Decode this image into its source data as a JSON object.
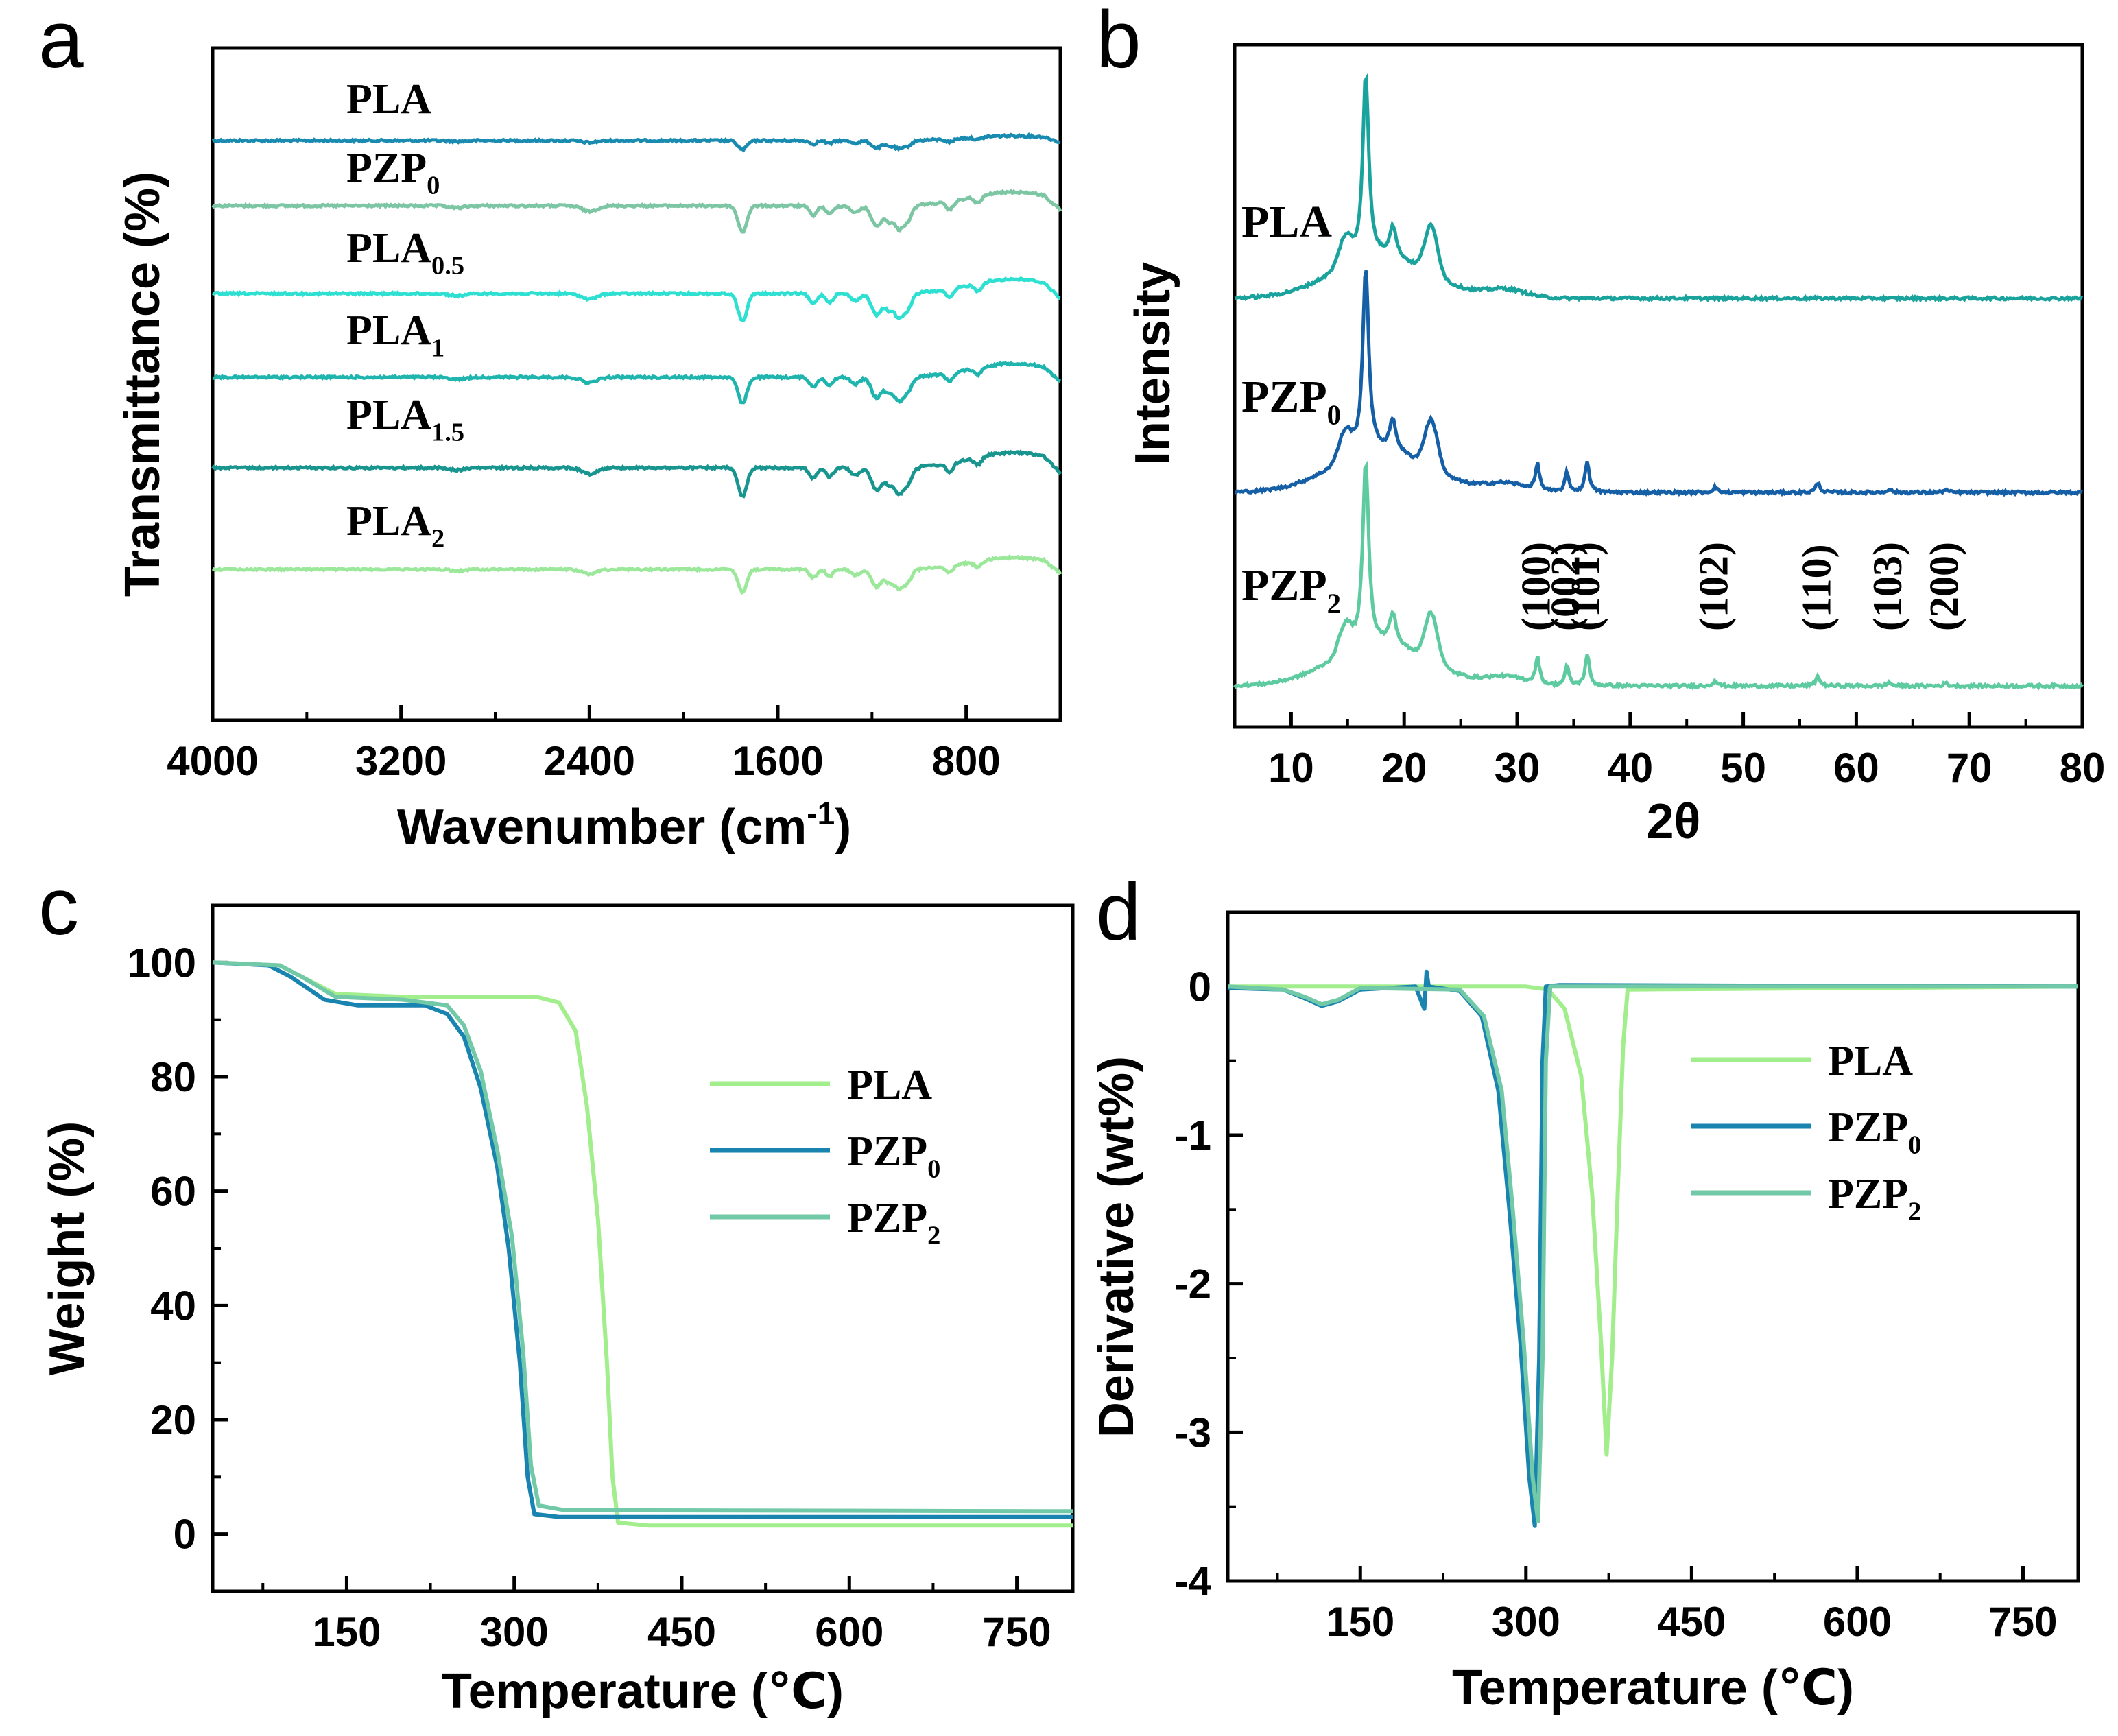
{
  "colors": {
    "PLA": "#1a8bb0",
    "PZP0": "#7cc6a4",
    "PLA0.5": "#2de0d2",
    "PLA1": "#1fb5ae",
    "PLA1.5": "#18958e",
    "PLA2": "#9be89b",
    "xrd_PLA": "#1aa39d",
    "xrd_PZP0": "#155fa6",
    "xrd_PZP2": "#5dcaa0",
    "tga_PLA": "#a2ee8c",
    "tga_PZP0": "#1a84b0",
    "tga_PZP2": "#72c9a7"
  },
  "chart_data": [
    {
      "panel": "a",
      "type": "line",
      "xlabel_main": "Wavenumber (cm",
      "xlabel_sup": "-1",
      "xlabel_close": ")",
      "ylabel": "Transmittance (%)",
      "xlim": [
        4000,
        400
      ],
      "xticks": [
        "4000",
        "3200",
        "2400",
        "1600",
        "800"
      ],
      "xtick_values": [
        4000,
        3200,
        2400,
        1600,
        800
      ],
      "series": [
        {
          "key": "PLA",
          "label_main": "PLA",
          "label_sub": "",
          "offset": 0
        },
        {
          "key": "PZP0",
          "label_main": "PZP",
          "label_sub": "0",
          "offset": 1
        },
        {
          "key": "PLA0.5",
          "label_main": "PLA",
          "label_sub": "0.5",
          "offset": 2
        },
        {
          "key": "PLA1",
          "label_main": "PLA",
          "label_sub": "1",
          "offset": 3
        },
        {
          "key": "PLA1.5",
          "label_main": "PLA",
          "label_sub": "1.5",
          "offset": 4
        },
        {
          "key": "PLA2",
          "label_main": "PLA",
          "label_sub": "2",
          "offset": 5
        }
      ],
      "bands_cm-1": [
        2400,
        1750,
        1450,
        1380,
        1180,
        1085,
        870,
        750
      ]
    },
    {
      "panel": "b",
      "type": "line",
      "xlabel": "2θ",
      "ylabel": "Intensity",
      "xlim": [
        5,
        80
      ],
      "xticks": [
        "10",
        "20",
        "30",
        "40",
        "50",
        "60",
        "70",
        "80"
      ],
      "xtick_values": [
        10,
        20,
        30,
        40,
        50,
        60,
        70,
        80
      ],
      "series": [
        {
          "key": "xrd_PLA",
          "label_main": "PLA",
          "label_sub": ""
        },
        {
          "key": "xrd_PZP0",
          "label_main": "PZP",
          "label_sub": "0"
        },
        {
          "key": "xrd_PZP2",
          "label_main": "PZP",
          "label_sub": "2"
        }
      ],
      "pla_peaks_2theta": [
        14.8,
        16.6,
        19.0,
        22.4
      ],
      "zno_peaks": [
        {
          "label": "(100)",
          "two_theta": 31.8
        },
        {
          "label": "(002)",
          "two_theta": 34.4
        },
        {
          "label": "(101)",
          "two_theta": 36.2
        },
        {
          "label": "(102)",
          "two_theta": 47.5
        },
        {
          "label": "(110)",
          "two_theta": 56.6
        },
        {
          "label": "(103)",
          "two_theta": 62.9
        },
        {
          "label": "(200)",
          "two_theta": 67.9
        }
      ]
    },
    {
      "panel": "c",
      "type": "line",
      "xlabel": "Temperature (℃)",
      "ylabel": "Weight (%)",
      "xlim": [
        30,
        800
      ],
      "ylim": [
        -10,
        110
      ],
      "xticks": [
        "150",
        "300",
        "450",
        "600",
        "750"
      ],
      "xtick_values": [
        150,
        300,
        450,
        600,
        750
      ],
      "yticks": [
        "0",
        "20",
        "40",
        "60",
        "80",
        "100"
      ],
      "ytick_values": [
        0,
        20,
        40,
        60,
        80,
        100
      ],
      "series": [
        {
          "key": "tga_PLA",
          "label_main": "PLA",
          "label_sub": "",
          "points": [
            [
              30,
              100
            ],
            [
              90,
              99.5
            ],
            [
              110,
              97.5
            ],
            [
              140,
              94.5
            ],
            [
              200,
              94
            ],
            [
              320,
              94
            ],
            [
              340,
              93
            ],
            [
              355,
              88
            ],
            [
              365,
              75
            ],
            [
              375,
              55
            ],
            [
              383,
              30
            ],
            [
              388,
              10
            ],
            [
              393,
              2
            ],
            [
              420,
              1.5
            ],
            [
              800,
              1.5
            ]
          ]
        },
        {
          "key": "tga_PZP0",
          "label_main": "PZP",
          "label_sub": "0",
          "points": [
            [
              30,
              100
            ],
            [
              80,
              99.5
            ],
            [
              100,
              97.5
            ],
            [
              130,
              93.5
            ],
            [
              160,
              92.5
            ],
            [
              220,
              92.5
            ],
            [
              240,
              91
            ],
            [
              255,
              87
            ],
            [
              270,
              78
            ],
            [
              285,
              64
            ],
            [
              295,
              50
            ],
            [
              305,
              30
            ],
            [
              312,
              10
            ],
            [
              318,
              3.5
            ],
            [
              340,
              3
            ],
            [
              800,
              3
            ]
          ]
        },
        {
          "key": "tga_PZP2",
          "label_main": "PZP",
          "label_sub": "2",
          "points": [
            [
              30,
              100
            ],
            [
              90,
              99.5
            ],
            [
              110,
              97.5
            ],
            [
              140,
              94
            ],
            [
              200,
              93.5
            ],
            [
              240,
              92.5
            ],
            [
              255,
              89
            ],
            [
              270,
              81
            ],
            [
              285,
              67
            ],
            [
              298,
              52
            ],
            [
              308,
              32
            ],
            [
              315,
              12
            ],
            [
              322,
              5
            ],
            [
              345,
              4.2
            ],
            [
              800,
              4
            ]
          ]
        }
      ]
    },
    {
      "panel": "d",
      "type": "line",
      "xlabel": "Temperature (℃)",
      "ylabel": "Derivative (wt%)",
      "xlim": [
        30,
        800
      ],
      "ylim": [
        -4,
        0.5
      ],
      "xticks": [
        "150",
        "300",
        "450",
        "600",
        "750"
      ],
      "xtick_values": [
        150,
        300,
        450,
        600,
        750
      ],
      "yticks": [
        "-4",
        "-3",
        "-2",
        "-1",
        "0"
      ],
      "ytick_values": [
        -4,
        -3,
        -2,
        -1,
        0
      ],
      "series": [
        {
          "key": "tga_PLA",
          "label_main": "PLA",
          "label_sub": "",
          "points": [
            [
              30,
              0
            ],
            [
              300,
              0
            ],
            [
              320,
              -0.02
            ],
            [
              335,
              -0.15
            ],
            [
              350,
              -0.6
            ],
            [
              360,
              -1.4
            ],
            [
              368,
              -2.4
            ],
            [
              373,
              -3.15
            ],
            [
              378,
              -2.5
            ],
            [
              383,
              -1.4
            ],
            [
              388,
              -0.4
            ],
            [
              392,
              -0.02
            ],
            [
              800,
              0
            ]
          ]
        },
        {
          "key": "tga_PZP0",
          "label_main": "PZP",
          "label_sub": "0",
          "points": [
            [
              30,
              -0.01
            ],
            [
              80,
              -0.02
            ],
            [
              100,
              -0.08
            ],
            [
              115,
              -0.13
            ],
            [
              130,
              -0.1
            ],
            [
              150,
              -0.02
            ],
            [
              200,
              0
            ],
            [
              208,
              -0.15
            ],
            [
              210,
              0.1
            ],
            [
              212,
              0
            ],
            [
              240,
              -0.03
            ],
            [
              260,
              -0.2
            ],
            [
              275,
              -0.7
            ],
            [
              285,
              -1.5
            ],
            [
              295,
              -2.4
            ],
            [
              303,
              -3.3
            ],
            [
              308,
              -3.63
            ],
            [
              312,
              -2.5
            ],
            [
              315,
              -0.5
            ],
            [
              318,
              0
            ],
            [
              330,
              0.01
            ],
            [
              800,
              0
            ]
          ]
        },
        {
          "key": "tga_PZP2",
          "label_main": "PZP",
          "label_sub": "2",
          "points": [
            [
              30,
              0
            ],
            [
              80,
              -0.02
            ],
            [
              100,
              -0.07
            ],
            [
              115,
              -0.12
            ],
            [
              130,
              -0.09
            ],
            [
              150,
              -0.01
            ],
            [
              240,
              -0.02
            ],
            [
              262,
              -0.2
            ],
            [
              278,
              -0.7
            ],
            [
              288,
              -1.5
            ],
            [
              298,
              -2.4
            ],
            [
              306,
              -3.3
            ],
            [
              311,
              -3.6
            ],
            [
              315,
              -2.5
            ],
            [
              318,
              -0.5
            ],
            [
              322,
              0
            ],
            [
              800,
              0
            ]
          ]
        }
      ]
    }
  ],
  "panel_letters": {
    "a": "a",
    "b": "b",
    "c": "c",
    "d": "d"
  }
}
